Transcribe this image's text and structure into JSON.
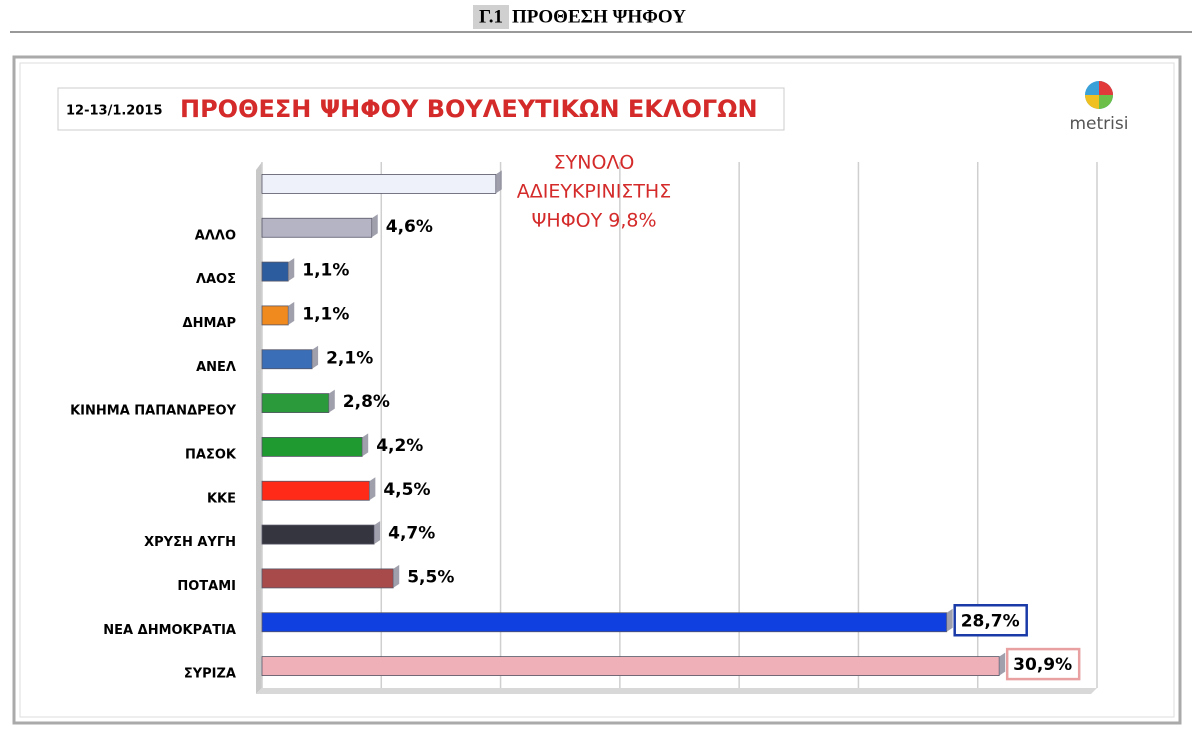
{
  "header": {
    "number": "Γ.1",
    "title": "ΠΡΟΘΕΣΗ ΨΗΦΟΥ"
  },
  "chart_data": {
    "type": "hbar",
    "date": "12-13/1.2015",
    "title": "ΠΡΟΘΕΣΗ ΨΗΦΟΥ ΒΟΥΛΕΥΤΙΚΩΝ ΕΚΛΟΓΩΝ",
    "logo": "metrisi",
    "annotation": [
      "ΣΥΝΟΛΟ",
      "ΑΔΙΕΥΚΡΙΝΙΣΤΗΣ",
      "ΨΗΦΟΥ 9,8%"
    ],
    "categories": [
      null,
      "ΑΛΛΟ",
      "ΛΑΟΣ",
      "ΔΗΜΑΡ",
      "ΑΝΕΛ",
      "ΚΙΝΗΜΑ ΠΑΠΑΝΔΡΕΟΥ",
      "ΠΑΣΟΚ",
      "ΚΚΕ",
      "ΧΡΥΣΗ ΑΥΓΗ",
      "ΠΟΤΑΜΙ",
      "ΝΕΑ ΔΗΜΟΚΡΑΤΙΑ",
      "ΣΥΡΙΖΑ"
    ],
    "values": [
      9.8,
      4.6,
      1.1,
      1.1,
      2.1,
      2.8,
      4.2,
      4.5,
      4.7,
      5.5,
      28.7,
      30.9
    ],
    "value_labels": [
      null,
      "4,6%",
      "1,1%",
      "1,1%",
      "2,1%",
      "2,8%",
      "4,2%",
      "4,5%",
      "4,7%",
      "5,5%",
      "28,7%",
      "30,9%"
    ],
    "colors": [
      "#eef0fa",
      "#b4b4c4",
      "#2c5c9e",
      "#f08a1e",
      "#3a6eb6",
      "#2a9a3a",
      "#1f9a30",
      "#ff2a18",
      "#35353f",
      "#a84a4a",
      "#1040e0",
      "#f0b0b8"
    ],
    "value_label_box": [
      null,
      null,
      null,
      null,
      null,
      null,
      null,
      null,
      null,
      null,
      "#1a3aa8",
      "#e8a0a0"
    ],
    "xlim": [
      0,
      35
    ],
    "xticks": [
      0,
      5,
      10,
      15,
      20,
      25,
      30,
      35
    ],
    "tick_labels": false,
    "grid": true
  }
}
